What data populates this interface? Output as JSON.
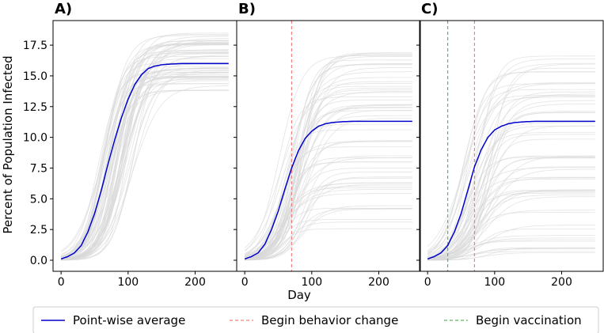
{
  "figure": {
    "ylabel": "Percent of Population Infected",
    "xlabel": "Day",
    "legend": {
      "placement": "bottom",
      "entries": [
        {
          "key": "average",
          "label": "Point-wise average",
          "color": "#0000cc",
          "style": "solid"
        },
        {
          "key": "behavior",
          "label": "Begin behavior change",
          "color": "#f08080",
          "style": "dashed"
        },
        {
          "key": "vaccination",
          "label": "Begin vaccination",
          "color": "#5cb85c",
          "style": "dashed"
        }
      ]
    },
    "colors": {
      "sim": "#d9d9d9",
      "average": "#0000cc",
      "behavior": "#f08080",
      "vaccination": "#5cb85c"
    }
  },
  "chart_data": [
    {
      "panel": "A)",
      "type": "line",
      "xlim": [
        -12,
        262
      ],
      "ylim": [
        -0.9,
        19.5
      ],
      "xticks": [
        0,
        100,
        200
      ],
      "yticks": [
        0.0,
        2.5,
        5.0,
        7.5,
        10.0,
        12.5,
        15.0,
        17.5
      ],
      "series": [
        {
          "name": "Point-wise average",
          "x": [
            0,
            10,
            20,
            30,
            40,
            50,
            60,
            70,
            80,
            90,
            100,
            110,
            120,
            130,
            140,
            150,
            160,
            180,
            200,
            220,
            250
          ],
          "y": [
            0.1,
            0.3,
            0.6,
            1.2,
            2.3,
            3.8,
            5.7,
            7.8,
            9.8,
            11.6,
            13.1,
            14.3,
            15.1,
            15.6,
            15.8,
            15.9,
            15.95,
            16.0,
            16.0,
            16.0,
            16.0
          ]
        }
      ],
      "simulations": {
        "count": 60,
        "final_range": [
          13.8,
          18.5
        ],
        "midpoint_day_range": [
          55,
          110
        ]
      },
      "vlines": []
    },
    {
      "panel": "B)",
      "type": "line",
      "xlim": [
        -12,
        262
      ],
      "ylim": [
        -0.9,
        19.5
      ],
      "xticks": [
        0,
        100,
        200
      ],
      "yticks": [
        0.0,
        2.5,
        5.0,
        7.5,
        10.0,
        12.5,
        15.0,
        17.5
      ],
      "series": [
        {
          "name": "Point-wise average",
          "x": [
            0,
            10,
            20,
            30,
            40,
            50,
            60,
            70,
            80,
            90,
            100,
            110,
            120,
            130,
            140,
            150,
            160,
            180,
            200,
            220,
            250
          ],
          "y": [
            0.1,
            0.3,
            0.6,
            1.3,
            2.5,
            4.0,
            5.8,
            7.5,
            8.9,
            9.9,
            10.5,
            10.9,
            11.1,
            11.2,
            11.25,
            11.28,
            11.3,
            11.3,
            11.3,
            11.3,
            11.3
          ]
        }
      ],
      "simulations": {
        "count": 60,
        "final_range": [
          2.5,
          17.0
        ],
        "midpoint_day_range": [
          50,
          95
        ]
      },
      "vlines": [
        {
          "x": 70,
          "key": "behavior"
        }
      ]
    },
    {
      "panel": "C)",
      "type": "line",
      "xlim": [
        -12,
        262
      ],
      "ylim": [
        -0.9,
        19.5
      ],
      "xticks": [
        0,
        100,
        200
      ],
      "yticks": [
        0.0,
        2.5,
        5.0,
        7.5,
        10.0,
        12.5,
        15.0,
        17.5
      ],
      "series": [
        {
          "name": "Point-wise average",
          "x": [
            0,
            10,
            20,
            30,
            40,
            50,
            60,
            70,
            80,
            90,
            100,
            110,
            120,
            130,
            140,
            150,
            160,
            180,
            200,
            220,
            250
          ],
          "y": [
            0.1,
            0.3,
            0.6,
            1.2,
            2.3,
            3.8,
            5.7,
            7.6,
            9.0,
            10.0,
            10.6,
            10.9,
            11.1,
            11.2,
            11.25,
            11.28,
            11.3,
            11.3,
            11.3,
            11.3,
            11.3
          ]
        }
      ],
      "simulations": {
        "count": 60,
        "final_range": [
          0.5,
          17.0
        ],
        "midpoint_day_range": [
          50,
          95
        ]
      },
      "vlines": [
        {
          "x": 30,
          "key": "vaccination"
        },
        {
          "x": 70,
          "key": "behavior"
        }
      ]
    }
  ]
}
